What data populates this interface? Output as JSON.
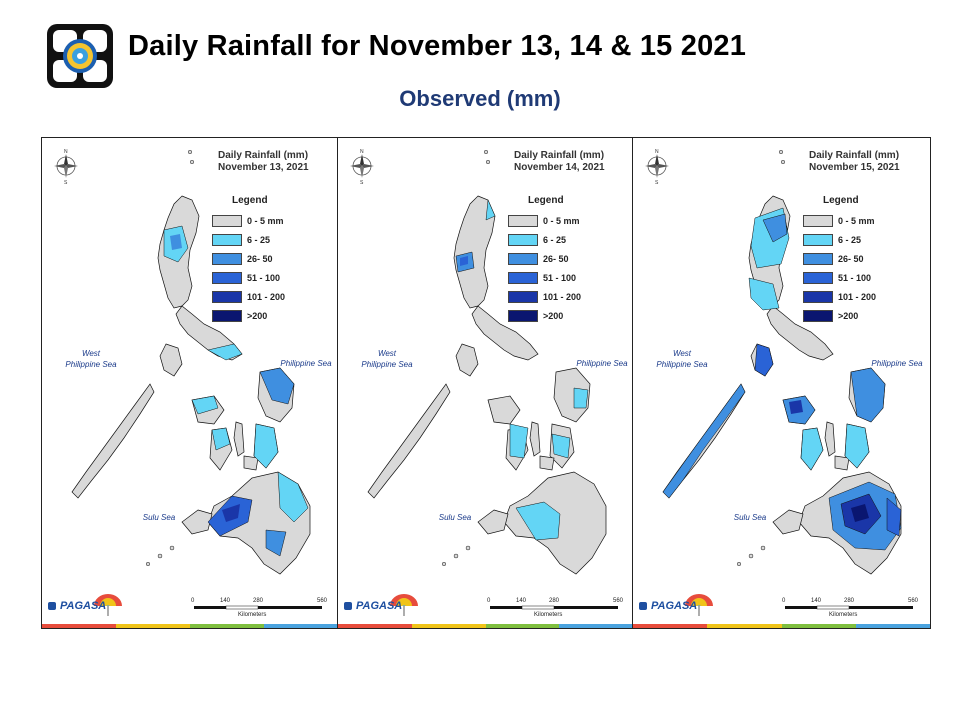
{
  "title": "Daily Rainfall for November 13, 14 & 15  2021",
  "subtitle": "Observed (mm)",
  "legend": {
    "heading": "Legend",
    "items": [
      {
        "label": "0 - 5 mm",
        "color": "#d9d9d9"
      },
      {
        "label": "6 - 25",
        "color": "#63d5f5"
      },
      {
        "label": "26- 50",
        "color": "#3f8fe0"
      },
      {
        "label": "51 - 100",
        "color": "#2a63d6"
      },
      {
        "label": "101 - 200",
        "color": "#1a36a8"
      },
      {
        "label": ">200",
        "color": "#0a1670"
      }
    ]
  },
  "panels": [
    {
      "heading": "Daily Rainfall (mm)",
      "date": "November 13, 2021"
    },
    {
      "heading": "Daily Rainfall (mm)",
      "date": "November 14, 2021"
    },
    {
      "heading": "Daily Rainfall (mm)",
      "date": "November 15, 2021"
    }
  ],
  "map_labels": {
    "west_sea_line1": "West",
    "west_sea_line2": "Philippine Sea",
    "east_sea": "Philippine Sea",
    "south_sea": "Sulu Sea"
  },
  "scale": {
    "ticks": [
      "0",
      "140",
      "280",
      "560"
    ],
    "unit": "Kilometers"
  },
  "agency_logo_text": "PAGASA",
  "colors": {
    "title_blue": "#1f3a75",
    "stripe": [
      "#e74c3c",
      "#f0c419",
      "#7fbf3f",
      "#4aa3df"
    ]
  }
}
